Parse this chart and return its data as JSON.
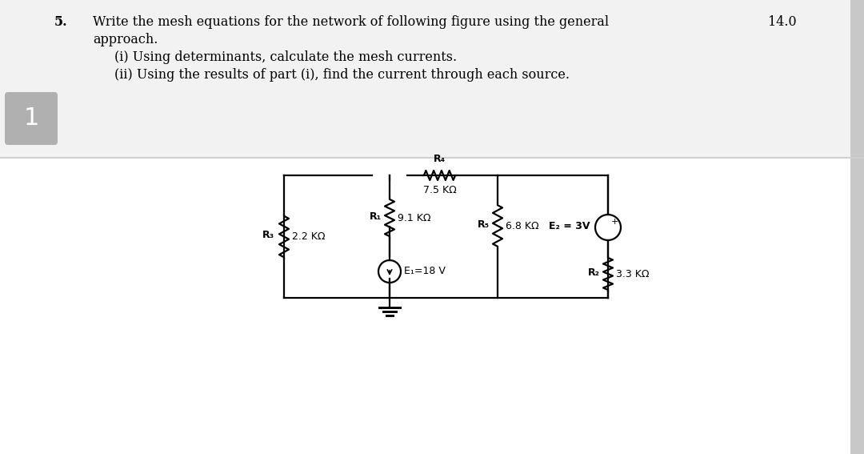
{
  "bg_color": "#ffffff",
  "top_bg": "#f2f2f2",
  "sep_color": "#d0d0d0",
  "text_color": "#000000",
  "question_number": "5.",
  "question_text": "Write the mesh equations for the network of following figure using the general",
  "question_score": "14.0",
  "question_line2": "approach.",
  "sub_i": "(i) Using determinants, calculate the mesh currents.",
  "sub_ii": "(ii) Using the results of part (i), find the current through each source.",
  "page_label": "1",
  "label_color": "#b0b0b0",
  "right_bar_color": "#c8c8c8",
  "circuit": {
    "R3_label": "R₃",
    "R3_val": "2.2 KΩ",
    "R1_label": "R₁",
    "R1_val": "9.1 KΩ",
    "R4_label": "R₄",
    "R4_val": "7.5 KΩ",
    "R5_label": "R₅",
    "R5_val": "6.8 KΩ",
    "R2_label": "R₂",
    "R2_val": "3.3 KΩ",
    "E1_label": "E₁=18 V",
    "E2_label": "E₂ = 3V"
  }
}
